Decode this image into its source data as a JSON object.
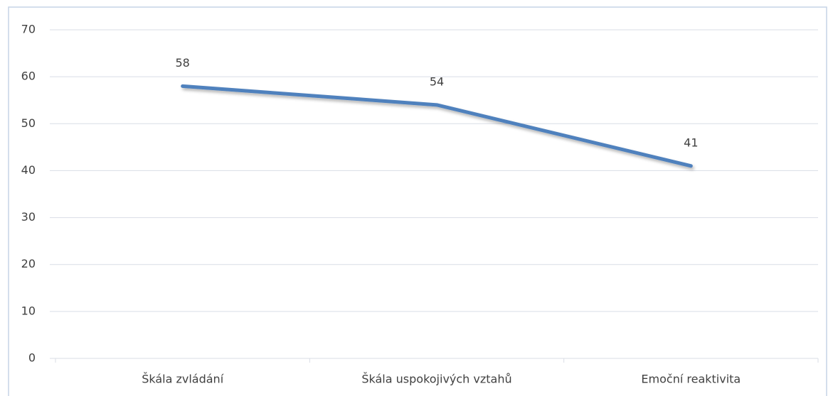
{
  "chart_data": {
    "type": "line",
    "categories": [
      "Škála zvládání",
      "Škála uspokojivých vztahů",
      "Emoční reaktivita"
    ],
    "values": [
      58,
      54,
      41
    ],
    "color": "#4f81bd",
    "ylim": [
      0,
      70
    ],
    "yticks": [
      0,
      10,
      20,
      30,
      40,
      50,
      60,
      70
    ],
    "grid": true
  }
}
